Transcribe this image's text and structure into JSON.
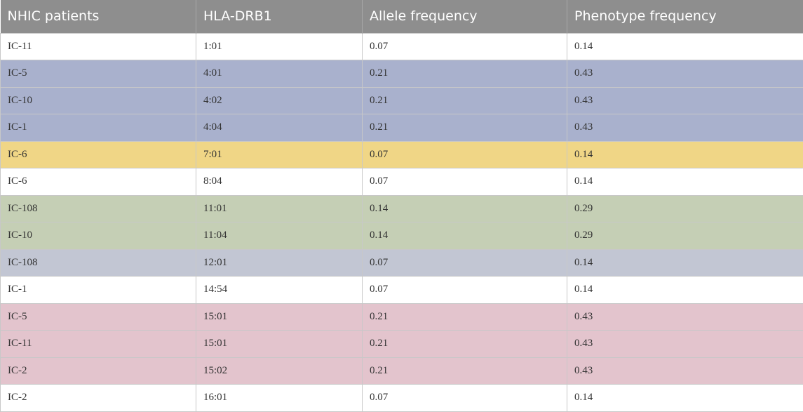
{
  "table": {
    "header": [
      "NHIC patients",
      "HLA-DRB1",
      "Allele frequency",
      "Phenotype frequency"
    ],
    "rows": [
      [
        "IC-11",
        "1:01",
        "0.07",
        "0.14"
      ],
      [
        "IC-5",
        "4:01",
        "0.21",
        "0.43"
      ],
      [
        "IC-10",
        "4:02",
        "0.21",
        "0.43"
      ],
      [
        "IC-1",
        "4:04",
        "0.21",
        "0.43"
      ],
      [
        "IC-6",
        "7:01",
        "0.07",
        "0.14"
      ],
      [
        "IC-6",
        "8:04",
        "0.07",
        "0.14"
      ],
      [
        "IC-108",
        "11:01",
        "0.14",
        "0.29"
      ],
      [
        "IC-10",
        "11:04",
        "0.14",
        "0.29"
      ],
      [
        "IC-108",
        "12:01",
        "0.07",
        "0.14"
      ],
      [
        "IC-1",
        "14:54",
        "0.07",
        "0.14"
      ],
      [
        "IC-5",
        "15:01",
        "0.21",
        "0.43"
      ],
      [
        "IC-11",
        "15:01",
        "0.21",
        "0.43"
      ],
      [
        "IC-2",
        "15:02",
        "0.21",
        "0.43"
      ],
      [
        "IC-2",
        "16:01",
        "0.07",
        "0.14"
      ]
    ]
  }
}
